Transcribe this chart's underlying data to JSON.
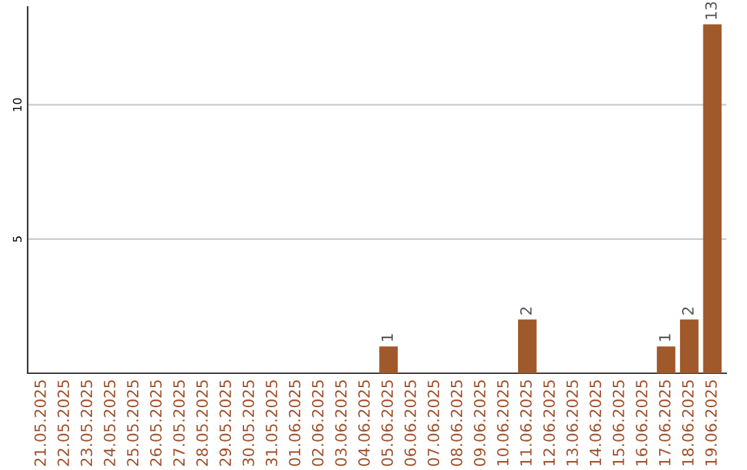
{
  "chart_data": {
    "type": "bar",
    "categories": [
      "21.05.2025",
      "22.05.2025",
      "23.05.2025",
      "24.05.2025",
      "25.05.2025",
      "26.05.2025",
      "27.05.2025",
      "28.05.2025",
      "29.05.2025",
      "30.05.2025",
      "31.05.2025",
      "01.06.2025",
      "02.06.2025",
      "03.06.2025",
      "04.06.2025",
      "05.06.2025",
      "06.06.2025",
      "07.06.2025",
      "08.06.2025",
      "09.06.2025",
      "10.06.2025",
      "11.06.2025",
      "12.06.2025",
      "13.06.2025",
      "14.06.2025",
      "15.06.2025",
      "16.06.2025",
      "17.06.2025",
      "18.06.2025",
      "19.06.2025"
    ],
    "values": [
      0,
      0,
      0,
      0,
      0,
      0,
      0,
      0,
      0,
      0,
      0,
      0,
      0,
      0,
      0,
      1,
      0,
      0,
      0,
      0,
      0,
      2,
      0,
      0,
      0,
      0,
      0,
      1,
      2,
      13
    ],
    "value_labels": [
      null,
      null,
      null,
      null,
      null,
      null,
      null,
      null,
      null,
      null,
      null,
      null,
      null,
      null,
      null,
      "1",
      null,
      null,
      null,
      null,
      null,
      "2",
      null,
      null,
      null,
      null,
      null,
      "1",
      "2",
      "13"
    ],
    "color": "#a0592b",
    "ylim": [
      0,
      13.65
    ],
    "yticks": [
      5,
      10
    ],
    "grid": "y",
    "legend": false
  }
}
